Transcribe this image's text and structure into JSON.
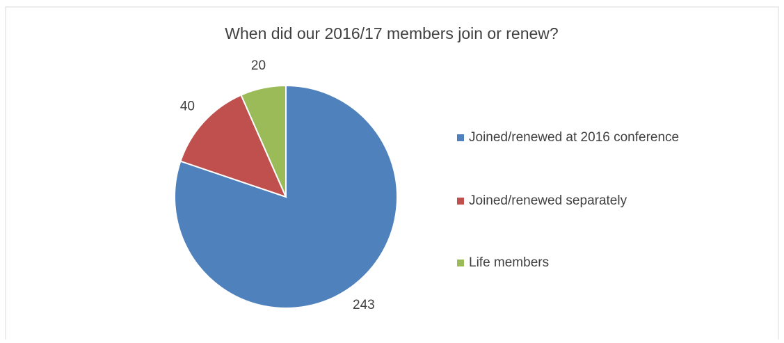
{
  "chart_data": {
    "type": "pie",
    "title": "When did our 2016/17 members join or renew?",
    "categories": [
      "Joined/renewed at 2016 conference",
      "Joined/renewed separately",
      "Life members"
    ],
    "values": [
      243,
      40,
      20
    ],
    "colors": [
      "#4f81bd",
      "#c0504d",
      "#9bbb59"
    ],
    "legend": "right"
  }
}
